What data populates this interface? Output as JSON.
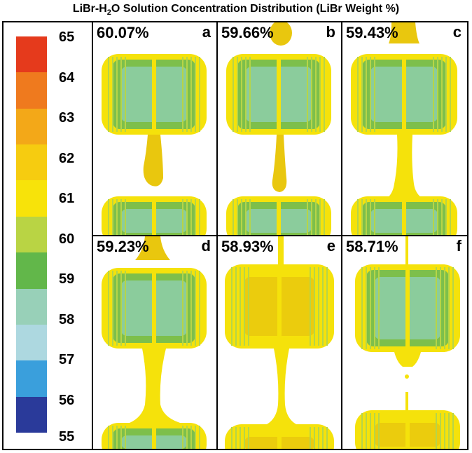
{
  "title": {
    "prefix": "LiBr-H",
    "subscript": "2",
    "suffix": "O Solution Concentration Distribution (LiBr Weight %)"
  },
  "legend": {
    "labels": [
      "65",
      "64",
      "63",
      "62",
      "61",
      "60",
      "59",
      "58",
      "57",
      "56",
      "55"
    ],
    "colors": [
      "#e53a1c",
      "#ef7a1e",
      "#f3a818",
      "#f6cc10",
      "#f7e30a",
      "#b9d444",
      "#62b74a",
      "#98d0b8",
      "#add8e0",
      "#3a9fdc",
      "#2a3a9a"
    ]
  },
  "panels": [
    {
      "id": "a",
      "letter": "a",
      "percent": "60.07%"
    },
    {
      "id": "b",
      "letter": "b",
      "percent": "59.66%"
    },
    {
      "id": "c",
      "letter": "c",
      "percent": "59.43%"
    },
    {
      "id": "d",
      "letter": "d",
      "percent": "59.23%"
    },
    {
      "id": "e",
      "letter": "e",
      "percent": "58.93%"
    },
    {
      "id": "f",
      "letter": "f",
      "percent": "58.71%"
    }
  ],
  "palette": {
    "yellow": "#f5e20b",
    "yellow_dark": "#e9c70e",
    "green": "#7dbf4b",
    "green_light": "#b6d548",
    "teal": "#8fd0b0"
  }
}
